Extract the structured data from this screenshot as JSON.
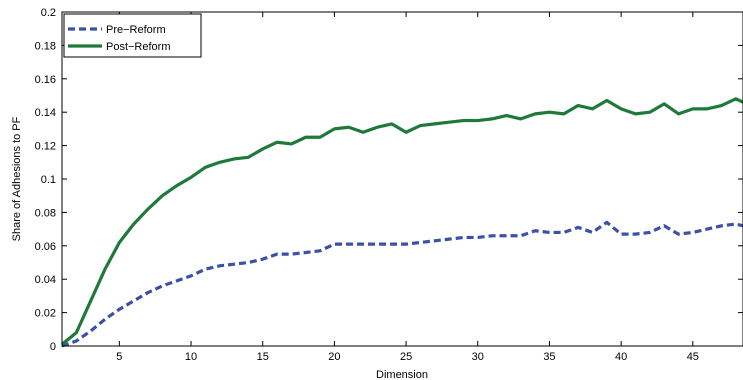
{
  "chart_data": {
    "type": "line",
    "title": "",
    "xlabel": "Dimension",
    "ylabel": "Share of Adhesions to PF",
    "xlim": [
      1,
      48.5
    ],
    "ylim": [
      0,
      0.2
    ],
    "xticks": [
      5,
      10,
      15,
      20,
      25,
      30,
      35,
      40,
      45
    ],
    "yticks": [
      0,
      0.02,
      0.04,
      0.06,
      0.08,
      0.1,
      0.12,
      0.14,
      0.16,
      0.18,
      0.2
    ],
    "xtick_labels": [
      "5",
      "10",
      "15",
      "20",
      "25",
      "30",
      "35",
      "40",
      "45"
    ],
    "ytick_labels": [
      "0",
      "0.02",
      "0.04",
      "0.06",
      "0.08",
      "0.1",
      "0.12",
      "0.14",
      "0.16",
      "0.18",
      "0.2"
    ],
    "grid": false,
    "legend_position": "top-left",
    "series": [
      {
        "name": "Pre−Reform",
        "color": "#3c50a8",
        "style": "dashed",
        "x": [
          1,
          2,
          3,
          4,
          5,
          6,
          7,
          8,
          9,
          10,
          11,
          12,
          13,
          14,
          15,
          16,
          17,
          18,
          19,
          20,
          21,
          22,
          23,
          24,
          25,
          26,
          27,
          28,
          29,
          30,
          31,
          32,
          33,
          34,
          35,
          36,
          37,
          38,
          39,
          40,
          41,
          42,
          43,
          44,
          45,
          46,
          47,
          48,
          48.5
        ],
        "values": [
          0.0,
          0.003,
          0.009,
          0.016,
          0.022,
          0.027,
          0.032,
          0.036,
          0.039,
          0.042,
          0.046,
          0.048,
          0.049,
          0.05,
          0.052,
          0.055,
          0.055,
          0.056,
          0.057,
          0.061,
          0.061,
          0.061,
          0.061,
          0.061,
          0.061,
          0.062,
          0.063,
          0.064,
          0.065,
          0.065,
          0.066,
          0.066,
          0.066,
          0.069,
          0.068,
          0.068,
          0.071,
          0.068,
          0.074,
          0.067,
          0.067,
          0.068,
          0.072,
          0.067,
          0.068,
          0.07,
          0.072,
          0.073,
          0.072
        ]
      },
      {
        "name": "Post−Reform",
        "color": "#1f7a3a",
        "style": "solid",
        "x": [
          1,
          2,
          3,
          4,
          5,
          6,
          7,
          8,
          9,
          10,
          11,
          12,
          13,
          14,
          15,
          16,
          17,
          18,
          19,
          20,
          21,
          22,
          23,
          24,
          25,
          26,
          27,
          28,
          29,
          30,
          31,
          32,
          33,
          34,
          35,
          36,
          37,
          38,
          39,
          40,
          41,
          42,
          43,
          44,
          45,
          46,
          47,
          48,
          48.5
        ],
        "values": [
          0.001,
          0.008,
          0.027,
          0.046,
          0.062,
          0.073,
          0.082,
          0.09,
          0.096,
          0.101,
          0.107,
          0.11,
          0.112,
          0.113,
          0.118,
          0.122,
          0.121,
          0.125,
          0.125,
          0.13,
          0.131,
          0.128,
          0.131,
          0.133,
          0.128,
          0.132,
          0.133,
          0.134,
          0.135,
          0.135,
          0.136,
          0.138,
          0.136,
          0.139,
          0.14,
          0.139,
          0.144,
          0.142,
          0.147,
          0.142,
          0.139,
          0.14,
          0.145,
          0.139,
          0.142,
          0.142,
          0.144,
          0.148,
          0.146
        ]
      }
    ]
  }
}
